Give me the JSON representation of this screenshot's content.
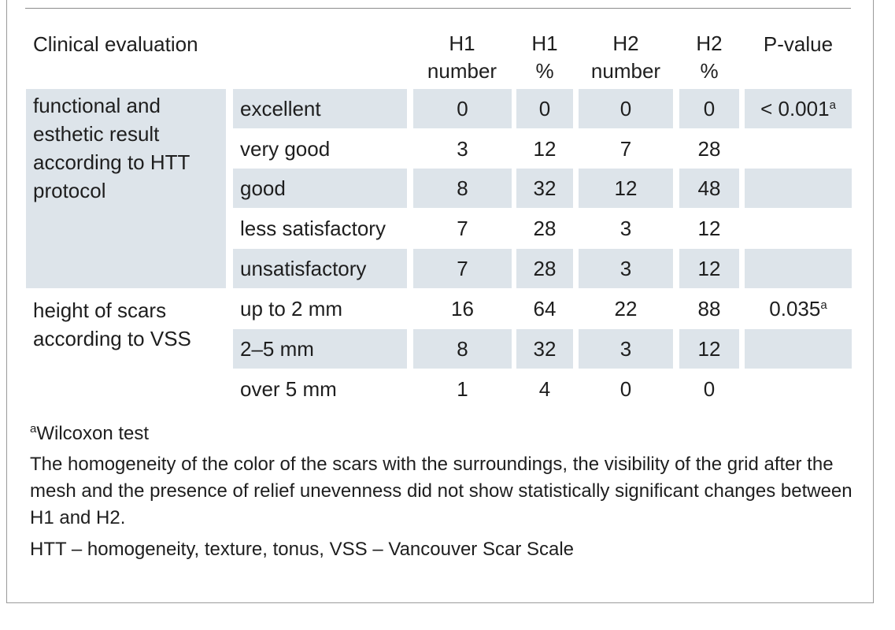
{
  "table": {
    "headers": {
      "evaluation": "Clinical evaluation",
      "h1_number": [
        "H1",
        "number"
      ],
      "h1_pct": [
        "H1",
        "%"
      ],
      "h2_number": [
        "H2",
        "number"
      ],
      "h2_pct": [
        "H2",
        "%"
      ],
      "p_value": "P-value"
    },
    "groups": [
      {
        "label": "functional and esthetic result according to HTT protocol",
        "p_value": "< 0.001",
        "p_sup": "a",
        "rows": [
          {
            "label": "excellent",
            "h1_number": "0",
            "h1_pct": "0",
            "h2_number": "0",
            "h2_pct": "0"
          },
          {
            "label": "very good",
            "h1_number": "3",
            "h1_pct": "12",
            "h2_number": "7",
            "h2_pct": "28"
          },
          {
            "label": "good",
            "h1_number": "8",
            "h1_pct": "32",
            "h2_number": "12",
            "h2_pct": "48"
          },
          {
            "label": "less satisfactory",
            "h1_number": "7",
            "h1_pct": "28",
            "h2_number": "3",
            "h2_pct": "12"
          },
          {
            "label": "unsatisfactory",
            "h1_number": "7",
            "h1_pct": "28",
            "h2_number": "3",
            "h2_pct": "12"
          }
        ]
      },
      {
        "label": "height of scars according to VSS",
        "p_value": "0.035",
        "p_sup": "a",
        "rows": [
          {
            "label": "up to 2 mm",
            "h1_number": "16",
            "h1_pct": "64",
            "h2_number": "22",
            "h2_pct": "88"
          },
          {
            "label": "2–5 mm",
            "h1_number": "8",
            "h1_pct": "32",
            "h2_number": "3",
            "h2_pct": "12"
          },
          {
            "label": "over 5 mm",
            "h1_number": "1",
            "h1_pct": "4",
            "h2_number": "0",
            "h2_pct": "0"
          }
        ]
      }
    ]
  },
  "footnotes": {
    "footnote_mark": "a",
    "footnote_text": "Wilcoxon test",
    "paragraph": "The homogeneity of the color of the scars with the surroundings, the visibility of the grid after the mesh and the presence of relief unevenness did not show statistically signifi­cant changes between H1 and H2.",
    "abbreviations": "HTT – homogeneity, texture, tonus, VSS – Vancouver Scar Scale"
  },
  "colors": {
    "shade": "#dde4ea",
    "text": "#1e1e1e",
    "border": "#9a9a9a"
  }
}
